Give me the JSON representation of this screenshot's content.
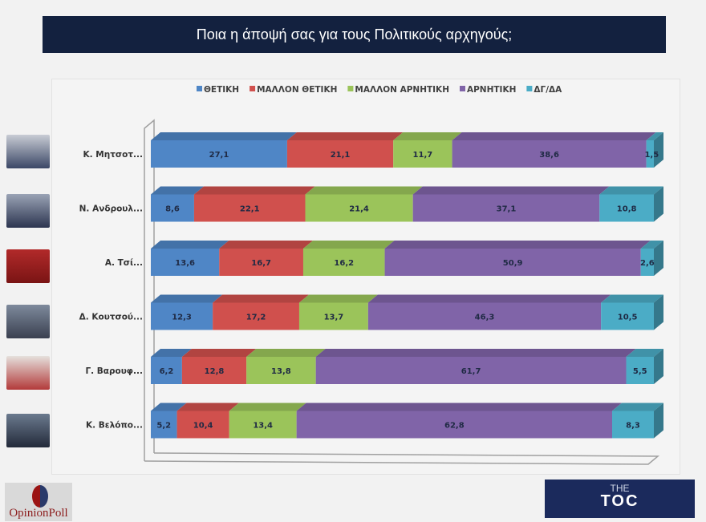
{
  "header": {
    "title": "Ποια η άποψή σας για τους Πολιτικούς αρχηγούς;"
  },
  "logos": {
    "left": "OpinionPoll",
    "right_top": "THE",
    "right_main": "TOC"
  },
  "chart_data": {
    "type": "bar",
    "orientation": "horizontal",
    "stacked": "percent",
    "style": "3d",
    "legend_position": "top",
    "categories": [
      "Κ. Μητσοτ...",
      "Ν. Ανδρουλ...",
      "Α. Τσί...",
      "Δ. Κουτσού...",
      "Γ. Βαρουφ...",
      "Κ. Βελόπο..."
    ],
    "series": [
      {
        "name": "ΘΕΤΙΚΗ",
        "color": "#4f86c6",
        "values": [
          27.1,
          8.6,
          13.6,
          12.3,
          6.2,
          5.2
        ]
      },
      {
        "name": "ΜΑΛΛΟΝ ΘΕΤΙΚΗ",
        "color": "#d0504d",
        "values": [
          21.1,
          22.1,
          16.7,
          17.2,
          12.8,
          10.4
        ]
      },
      {
        "name": "ΜΑΛΛΟΝ ΑΡΝΗΤΙΚΗ",
        "color": "#9bc45a",
        "values": [
          11.7,
          21.4,
          16.2,
          13.7,
          13.8,
          13.4
        ]
      },
      {
        "name": "ΑΡΝΗΤΙΚΗ",
        "color": "#8064a8",
        "values": [
          38.6,
          37.1,
          50.9,
          46.3,
          61.7,
          62.8
        ]
      },
      {
        "name": "ΔΓ/ΔΑ",
        "color": "#4bacc6",
        "values": [
          1.5,
          10.8,
          2.6,
          10.5,
          5.5,
          8.3
        ]
      }
    ]
  }
}
